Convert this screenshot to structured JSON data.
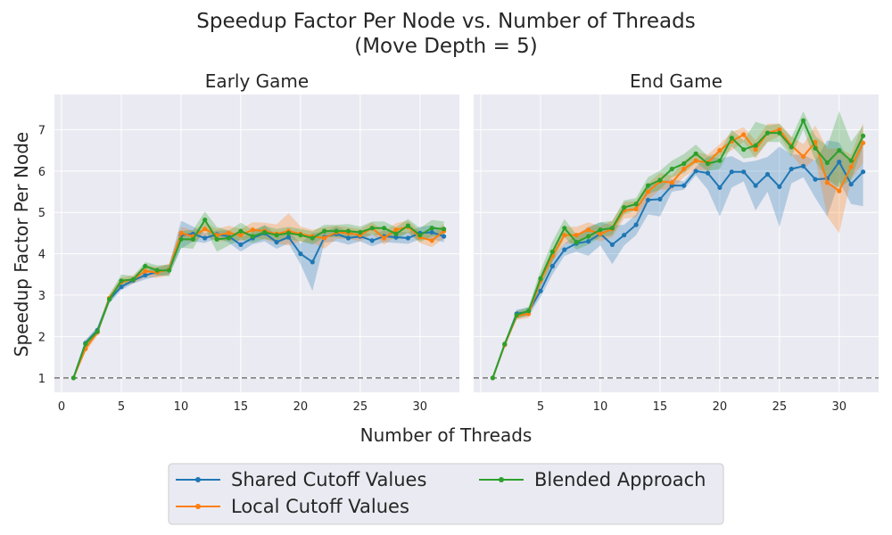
{
  "title_line1": "Speedup Factor Per Node vs. Number of Threads",
  "title_line2": "(Move Depth = 5)",
  "xlabel": "Number of Threads",
  "ylabel": "Speedup Factor Per Node",
  "legend": {
    "items": [
      "Shared Cutoff Values",
      "Local Cutoff Values",
      "Blended Approach"
    ],
    "placement": "bottom-center"
  },
  "colors": {
    "shared": "#1f77b4",
    "local": "#ff7f0e",
    "blended": "#2ca02c",
    "reference": "#808080",
    "panel_bg": "#eaeaf2",
    "grid": "#ffffff"
  },
  "chart_data": [
    {
      "type": "line",
      "title": "Early Game",
      "xlim": [
        -0.6,
        33.3
      ],
      "ylim": [
        0.65,
        7.85
      ],
      "xticks": [
        0,
        5,
        10,
        15,
        20,
        25,
        30
      ],
      "yticks": [
        1,
        2,
        3,
        4,
        5,
        6,
        7
      ],
      "grid": true,
      "reference_line": 1,
      "x": [
        1,
        2,
        3,
        4,
        5,
        6,
        7,
        8,
        9,
        10,
        11,
        12,
        13,
        14,
        15,
        16,
        17,
        18,
        19,
        20,
        21,
        22,
        23,
        24,
        25,
        26,
        27,
        28,
        29,
        30,
        31,
        32
      ],
      "series": [
        {
          "name": "Shared Cutoff Values",
          "values": [
            1.0,
            1.84,
            2.15,
            2.9,
            3.2,
            3.36,
            3.48,
            3.56,
            3.62,
            4.45,
            4.48,
            4.38,
            4.47,
            4.42,
            4.22,
            4.38,
            4.5,
            4.28,
            4.4,
            4.0,
            3.8,
            4.4,
            4.48,
            4.38,
            4.42,
            4.32,
            4.42,
            4.4,
            4.38,
            4.5,
            4.52,
            4.42
          ],
          "lower": [
            1.0,
            1.76,
            2.07,
            2.81,
            3.12,
            3.28,
            3.38,
            3.45,
            3.5,
            4.12,
            4.3,
            4.26,
            4.38,
            4.27,
            4.05,
            4.23,
            4.3,
            4.12,
            4.25,
            3.75,
            3.1,
            4.27,
            4.3,
            4.22,
            4.3,
            4.18,
            4.28,
            4.26,
            4.24,
            4.35,
            4.35,
            4.28
          ],
          "upper": [
            1.0,
            1.92,
            2.23,
            2.99,
            3.28,
            3.44,
            3.58,
            3.67,
            3.74,
            4.8,
            4.66,
            4.5,
            4.56,
            4.57,
            4.39,
            4.53,
            4.7,
            4.44,
            4.55,
            4.25,
            4.5,
            4.53,
            4.66,
            4.54,
            4.54,
            4.46,
            4.56,
            4.54,
            4.52,
            4.65,
            4.69,
            4.56
          ]
        },
        {
          "name": "Local Cutoff Values",
          "values": [
            1.0,
            1.7,
            2.1,
            2.93,
            3.32,
            3.38,
            3.58,
            3.55,
            3.62,
            4.5,
            4.42,
            4.6,
            4.45,
            4.5,
            4.45,
            4.58,
            4.55,
            4.48,
            4.55,
            4.48,
            4.42,
            4.38,
            4.52,
            4.5,
            4.45,
            4.62,
            4.38,
            4.58,
            4.65,
            4.4,
            4.32,
            4.55
          ],
          "lower": [
            1.0,
            1.62,
            2.02,
            2.83,
            3.22,
            3.28,
            3.44,
            3.42,
            3.48,
            4.35,
            4.28,
            4.45,
            4.3,
            4.32,
            4.3,
            4.4,
            4.35,
            4.25,
            4.2,
            4.3,
            4.26,
            4.12,
            4.36,
            4.36,
            4.3,
            4.48,
            4.22,
            4.42,
            4.5,
            4.26,
            4.16,
            4.38
          ],
          "upper": [
            1.0,
            1.78,
            2.18,
            3.03,
            3.42,
            3.48,
            3.72,
            3.68,
            3.76,
            4.65,
            4.56,
            4.75,
            4.6,
            4.68,
            4.6,
            4.76,
            4.75,
            4.71,
            4.98,
            4.66,
            4.58,
            4.64,
            4.68,
            4.64,
            4.6,
            4.76,
            4.54,
            4.74,
            4.8,
            4.54,
            4.48,
            4.72
          ]
        },
        {
          "name": "Blended Approach",
          "values": [
            1.0,
            1.82,
            2.12,
            2.9,
            3.35,
            3.38,
            3.7,
            3.6,
            3.6,
            4.35,
            4.35,
            4.82,
            4.35,
            4.38,
            4.55,
            4.42,
            4.52,
            4.45,
            4.5,
            4.45,
            4.38,
            4.55,
            4.55,
            4.55,
            4.52,
            4.62,
            4.62,
            4.48,
            4.68,
            4.45,
            4.62,
            4.6
          ],
          "lower": [
            1.0,
            1.74,
            2.04,
            2.8,
            3.2,
            3.3,
            3.6,
            3.48,
            3.46,
            4.15,
            4.12,
            4.62,
            4.05,
            4.2,
            4.35,
            4.26,
            4.36,
            4.3,
            4.35,
            4.3,
            4.22,
            4.4,
            4.4,
            4.38,
            4.38,
            4.46,
            4.46,
            4.32,
            4.52,
            4.28,
            4.42,
            4.42
          ],
          "upper": [
            1.0,
            1.9,
            2.2,
            3.0,
            3.5,
            3.46,
            3.8,
            3.72,
            3.74,
            4.55,
            4.58,
            5.02,
            4.65,
            4.56,
            4.75,
            4.58,
            4.68,
            4.6,
            4.65,
            4.6,
            4.54,
            4.7,
            4.7,
            4.72,
            4.66,
            4.78,
            4.78,
            4.64,
            4.84,
            4.62,
            4.82,
            4.78
          ]
        }
      ]
    },
    {
      "type": "line",
      "title": "End Game",
      "xlim": [
        -0.6,
        33.3
      ],
      "ylim": [
        0.65,
        7.85
      ],
      "xticks": [
        5,
        10,
        15,
        20,
        25,
        30
      ],
      "yticks": [
        1,
        2,
        3,
        4,
        5,
        6,
        7
      ],
      "grid": true,
      "reference_line": 1,
      "x": [
        1,
        2,
        3,
        4,
        5,
        6,
        7,
        8,
        9,
        10,
        11,
        12,
        13,
        14,
        15,
        16,
        17,
        18,
        19,
        20,
        21,
        22,
        23,
        24,
        25,
        26,
        27,
        28,
        29,
        30,
        31,
        32
      ],
      "series": [
        {
          "name": "Shared Cutoff Values",
          "values": [
            1.0,
            1.8,
            2.55,
            2.6,
            3.1,
            3.7,
            4.1,
            4.25,
            4.3,
            4.48,
            4.22,
            4.45,
            4.7,
            5.3,
            5.32,
            5.65,
            5.65,
            6.0,
            5.95,
            5.6,
            5.98,
            5.98,
            5.65,
            5.92,
            5.62,
            6.05,
            6.12,
            5.8,
            5.82,
            6.22,
            5.68,
            5.98
          ],
          "lower": [
            1.0,
            1.74,
            2.45,
            2.5,
            2.95,
            3.5,
            3.95,
            4.05,
            3.95,
            4.2,
            3.75,
            4.2,
            4.45,
            4.95,
            4.9,
            5.5,
            5.55,
            5.9,
            5.55,
            4.9,
            5.6,
            5.75,
            5.05,
            5.5,
            4.65,
            5.7,
            5.85,
            5.35,
            4.9,
            5.75,
            5.2,
            5.15
          ],
          "upper": [
            1.0,
            1.86,
            2.65,
            2.7,
            3.25,
            3.9,
            4.25,
            4.45,
            4.65,
            4.76,
            4.69,
            4.7,
            4.95,
            5.65,
            5.74,
            5.8,
            5.75,
            6.1,
            6.35,
            6.3,
            6.36,
            6.21,
            6.25,
            6.34,
            6.59,
            6.4,
            6.39,
            6.25,
            6.74,
            6.69,
            6.16,
            6.81
          ]
        },
        {
          "name": "Local Cutoff Values",
          "values": [
            1.0,
            1.8,
            2.5,
            2.55,
            3.35,
            3.95,
            4.45,
            4.45,
            4.58,
            4.48,
            4.6,
            5.05,
            5.08,
            5.5,
            5.75,
            5.72,
            6.05,
            6.25,
            6.2,
            6.5,
            6.72,
            6.88,
            6.52,
            6.92,
            7.0,
            6.62,
            6.35,
            6.7,
            5.72,
            5.52,
            6.1,
            6.68
          ],
          "lower": [
            1.0,
            1.74,
            2.4,
            2.45,
            3.2,
            3.8,
            4.25,
            4.25,
            4.4,
            4.3,
            4.4,
            4.85,
            4.88,
            5.3,
            5.55,
            5.55,
            5.85,
            6.05,
            6.0,
            6.35,
            6.5,
            6.7,
            6.3,
            6.7,
            6.85,
            6.4,
            6.05,
            6.3,
            4.9,
            4.5,
            5.8,
            6.2
          ],
          "upper": [
            1.0,
            1.86,
            2.6,
            2.65,
            3.5,
            4.1,
            4.65,
            4.65,
            4.76,
            4.66,
            4.8,
            5.25,
            5.28,
            5.7,
            5.95,
            5.89,
            6.25,
            6.45,
            6.4,
            6.65,
            6.94,
            7.06,
            6.74,
            7.14,
            7.15,
            6.84,
            6.65,
            7.1,
            6.54,
            6.54,
            6.4,
            7.16
          ]
        },
        {
          "name": "Blended Approach",
          "values": [
            1.0,
            1.82,
            2.52,
            2.62,
            3.4,
            4.05,
            4.62,
            4.28,
            4.42,
            4.58,
            4.62,
            5.12,
            5.2,
            5.65,
            5.78,
            6.05,
            6.18,
            6.42,
            6.18,
            6.25,
            6.8,
            6.52,
            6.62,
            6.92,
            6.92,
            6.58,
            7.22,
            6.55,
            6.2,
            6.5,
            6.25,
            6.85
          ],
          "lower": [
            1.0,
            1.76,
            2.42,
            2.52,
            3.2,
            3.8,
            4.4,
            4.1,
            4.22,
            4.4,
            4.45,
            4.95,
            5.05,
            5.45,
            5.55,
            5.85,
            5.95,
            6.2,
            6.0,
            6.05,
            6.6,
            6.3,
            6.35,
            6.7,
            6.7,
            6.35,
            7.0,
            6.25,
            5.8,
            5.6,
            5.8,
            6.6
          ],
          "upper": [
            1.0,
            1.88,
            2.62,
            2.72,
            3.6,
            4.3,
            4.84,
            4.46,
            4.62,
            4.76,
            4.79,
            5.29,
            5.35,
            5.85,
            6.01,
            6.25,
            6.41,
            6.64,
            6.36,
            6.45,
            7.0,
            6.74,
            7.19,
            7.1,
            7.14,
            6.81,
            7.44,
            6.85,
            6.6,
            7.45,
            6.7,
            7.1
          ]
        }
      ]
    }
  ]
}
